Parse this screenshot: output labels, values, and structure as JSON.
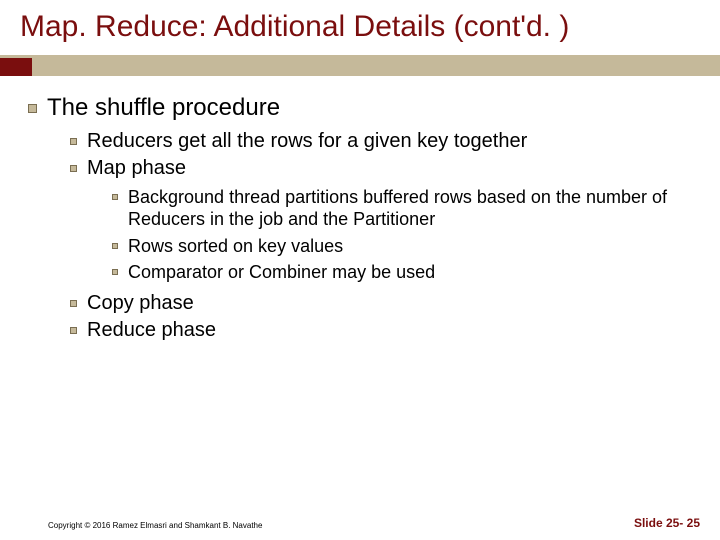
{
  "colors": {
    "title": "#7a0e0e",
    "accent": "#c5b99a",
    "text": "#000000",
    "background": "#ffffff"
  },
  "title": "Map. Reduce: Additional Details (cont'd. )",
  "l1": "The shuffle procedure",
  "l2a": "Reducers get all the rows for a given key together",
  "l2b": "Map phase",
  "l3a": "Background thread partitions buffered rows based on the number of Reducers in the job and the Partitioner",
  "l3b": "Rows sorted on key values",
  "l3c": "Comparator or Combiner may be used",
  "l2c": "Copy phase",
  "l2d": "Reduce phase",
  "copyright": "Copyright © 2016 Ramez Elmasri and Shamkant B. Navathe",
  "slidenum": "Slide 25- 25"
}
